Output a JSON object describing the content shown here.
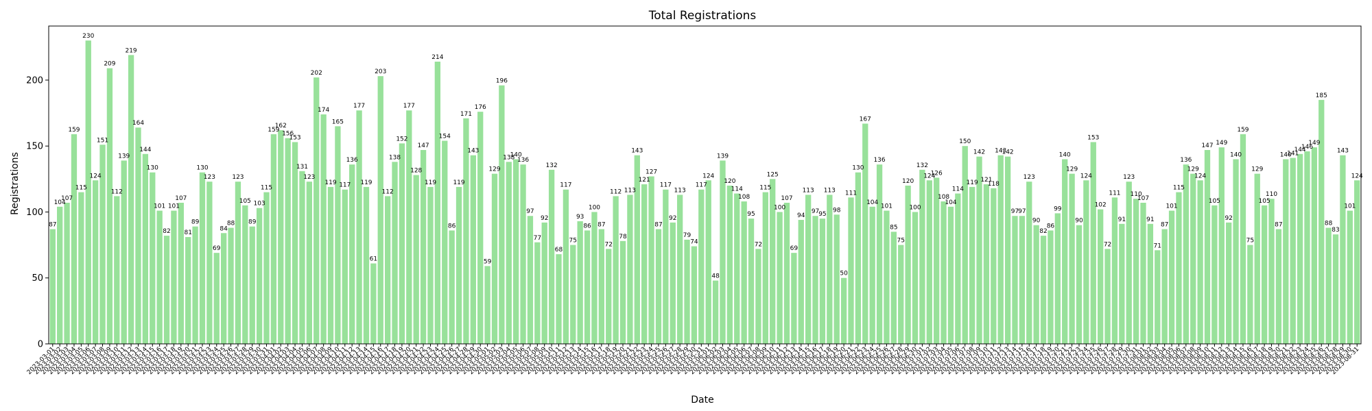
{
  "chart_data": {
    "type": "bar",
    "title": "Total Registrations",
    "xlabel": "Date",
    "ylabel": "Registrations",
    "ylim": [
      0,
      241
    ],
    "yticks": [
      0,
      50,
      100,
      150,
      200
    ],
    "bar_color": "#98e19a",
    "start_date": "2023-03-01",
    "values": [
      87,
      104,
      107,
      159,
      115,
      230,
      124,
      151,
      209,
      112,
      139,
      219,
      164,
      144,
      130,
      101,
      82,
      101,
      107,
      81,
      89,
      130,
      123,
      69,
      84,
      88,
      123,
      105,
      89,
      103,
      115,
      159,
      162,
      156,
      153,
      131,
      123,
      202,
      174,
      119,
      165,
      117,
      136,
      177,
      119,
      61,
      203,
      112,
      138,
      152,
      177,
      128,
      147,
      119,
      214,
      154,
      86,
      119,
      171,
      143,
      176,
      59,
      129,
      196,
      138,
      140,
      136,
      97,
      77,
      92,
      132,
      68,
      117,
      75,
      93,
      86,
      100,
      87,
      72,
      112,
      78,
      113,
      143,
      121,
      127,
      87,
      117,
      92,
      113,
      79,
      74,
      117,
      124,
      48,
      139,
      120,
      114,
      108,
      95,
      72,
      115,
      125,
      100,
      107,
      69,
      94,
      113,
      97,
      95,
      113,
      98,
      50,
      111,
      130,
      167,
      104,
      136,
      101,
      85,
      75,
      120,
      100,
      132,
      124,
      126,
      108,
      104,
      114,
      150,
      119,
      142,
      121,
      118,
      143,
      142,
      97,
      97,
      123,
      90,
      82,
      86,
      99,
      140,
      129,
      90,
      124,
      153,
      102,
      72,
      111,
      91,
      123,
      110,
      107,
      91,
      71,
      87,
      101,
      115,
      136,
      129,
      124,
      147,
      105,
      149,
      92,
      140,
      159,
      75,
      129,
      105,
      110,
      87,
      140,
      141,
      144,
      146,
      149,
      185,
      88,
      83,
      143,
      101,
      124
    ]
  }
}
